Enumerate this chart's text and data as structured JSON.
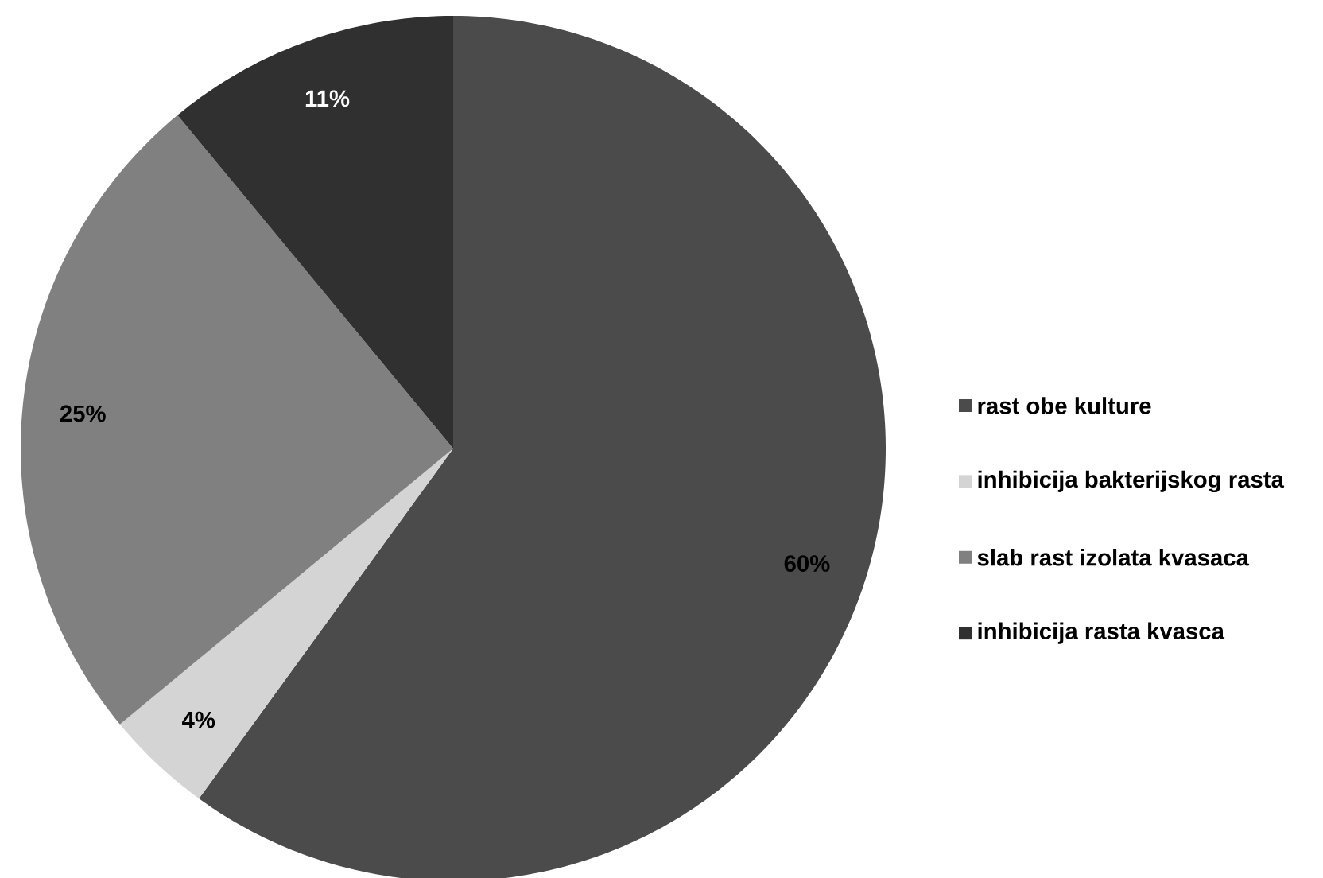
{
  "chart_data": {
    "type": "pie",
    "categories": [
      "rast obe kulture",
      "inhibicija bakterijskog rasta",
      "slab rast izolata kvasaca",
      "inhibicija rasta kvasca"
    ],
    "values": [
      60,
      4,
      25,
      11
    ],
    "colors": [
      "#4b4b4b",
      "#d4d4d4",
      "#808080",
      "#303030"
    ],
    "value_labels": [
      "60%",
      "4%",
      "25%",
      "11%"
    ],
    "legend": "right"
  }
}
